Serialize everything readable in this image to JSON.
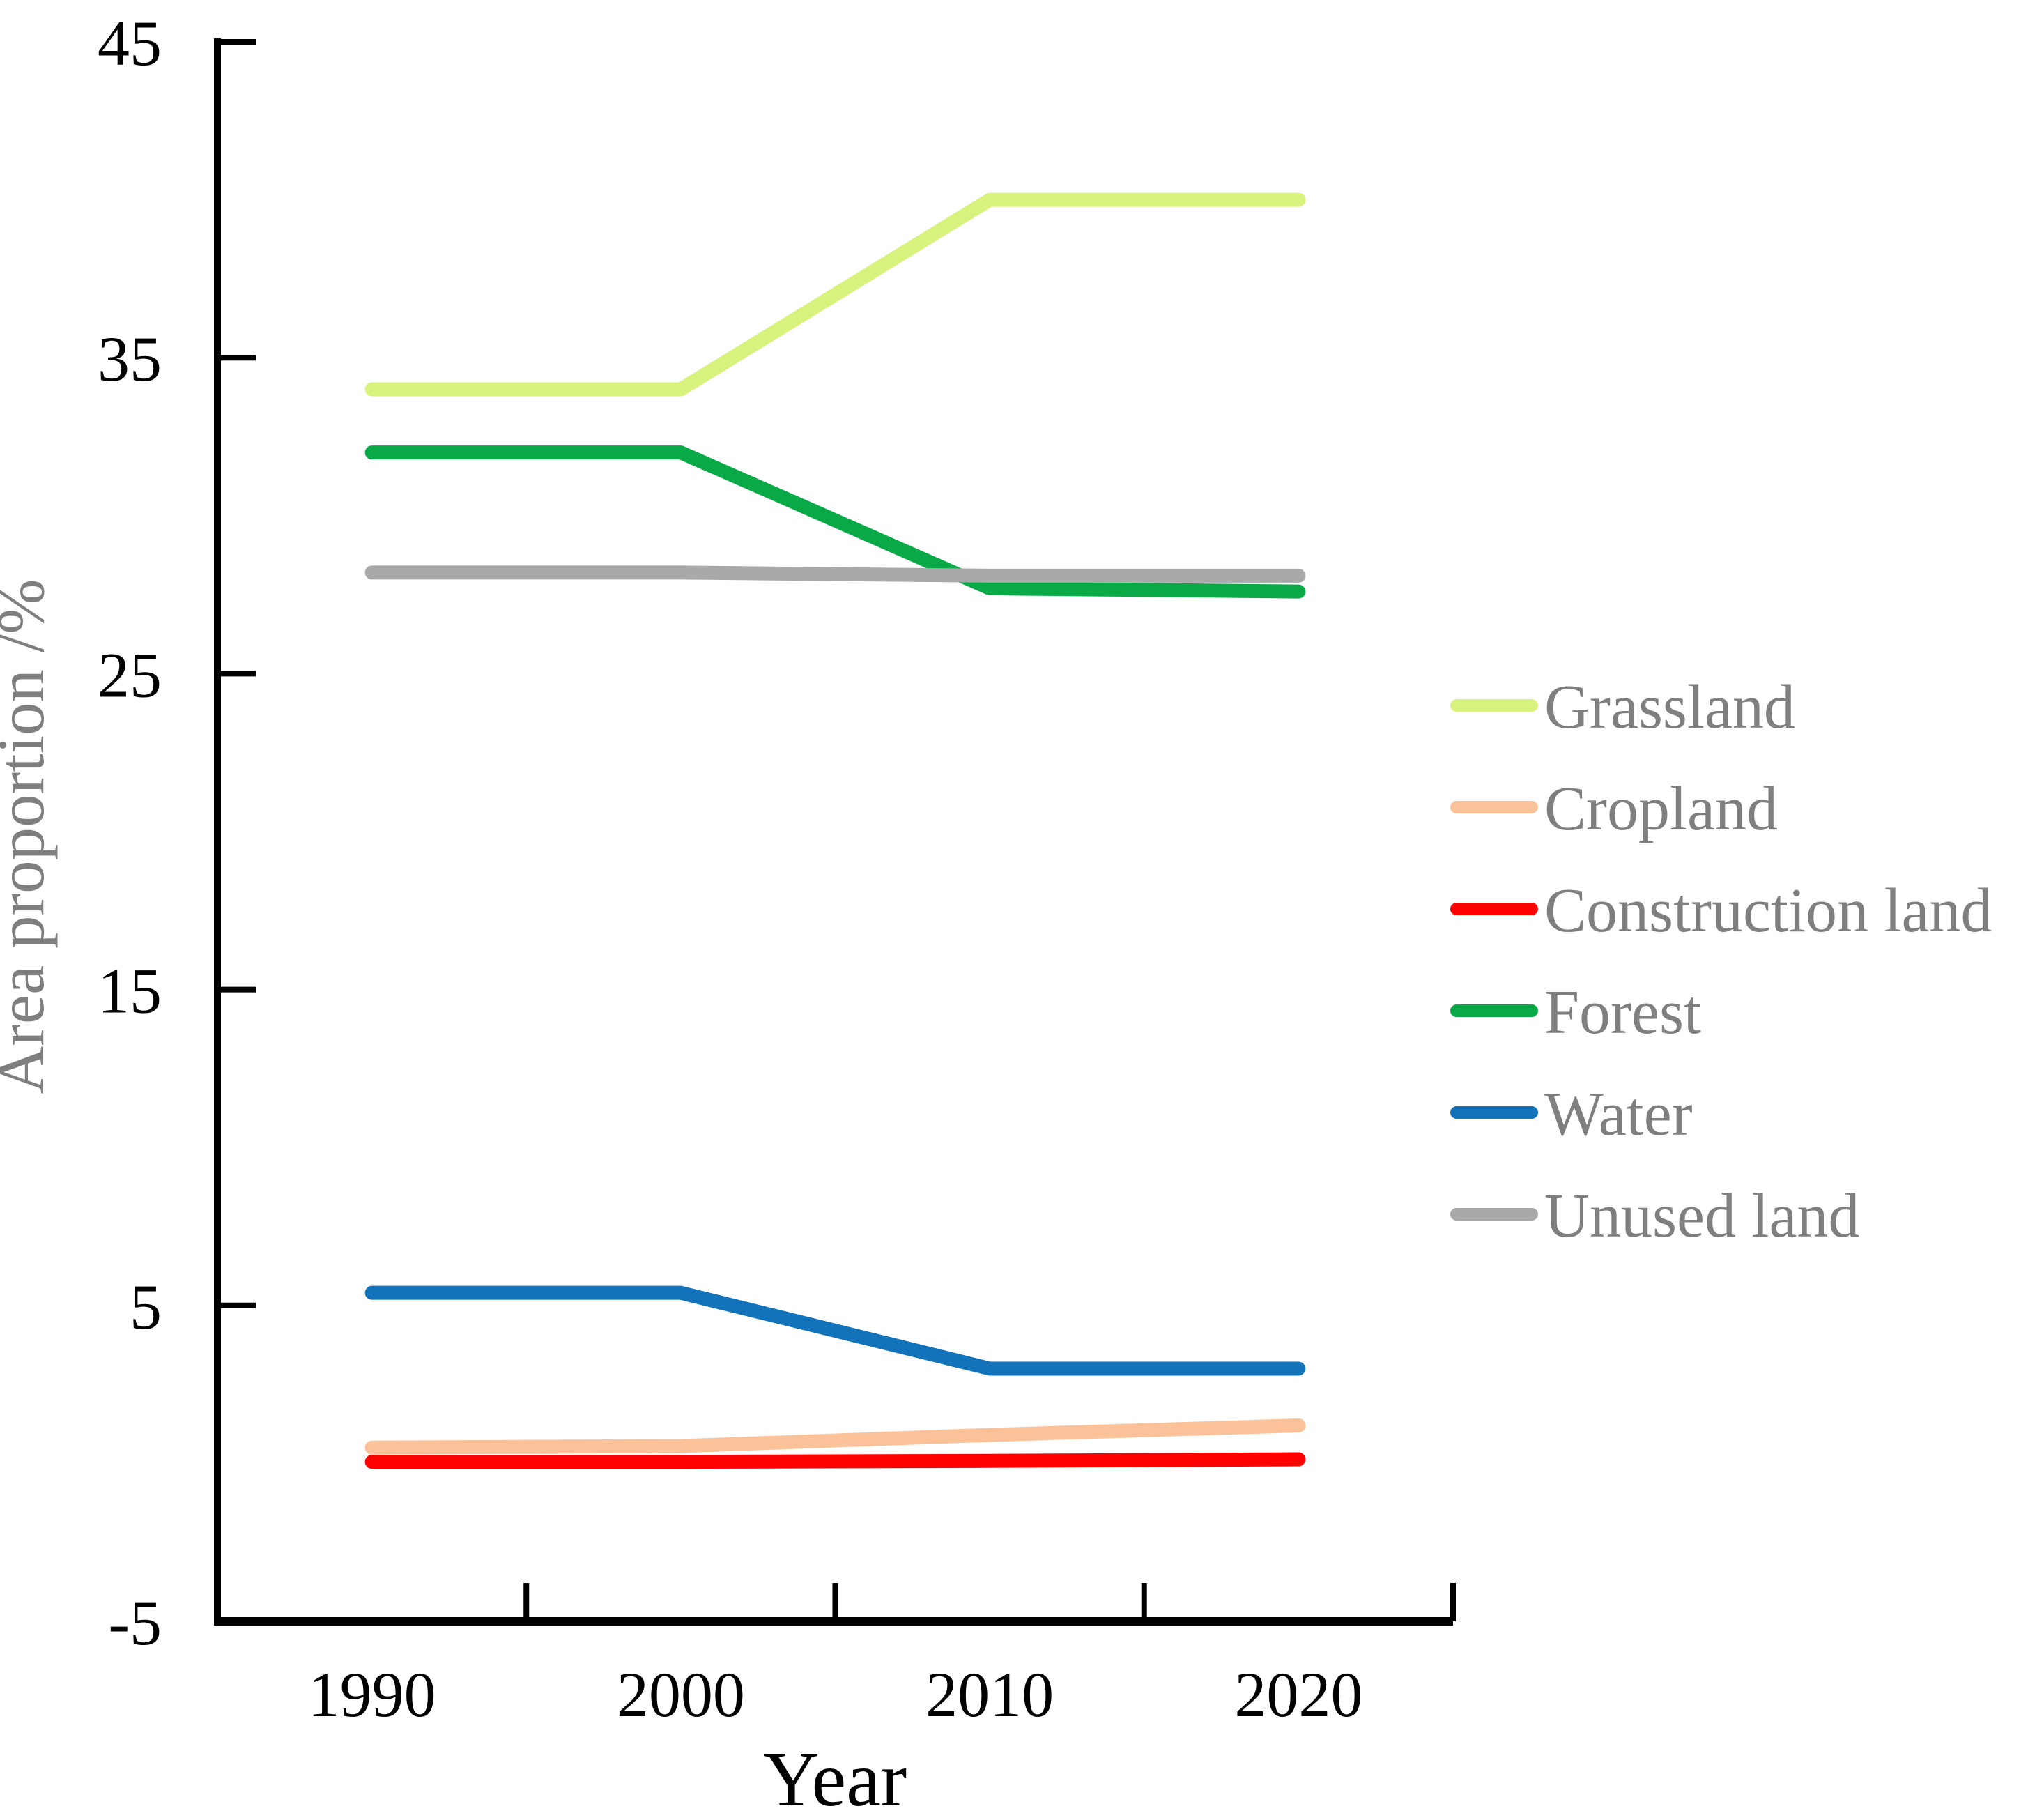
{
  "chart_data": {
    "type": "line",
    "title": "",
    "xlabel": "Year",
    "ylabel": "Area proportion /%",
    "categories": [
      "1990",
      "2000",
      "2010",
      "2020"
    ],
    "ylim": [
      -5,
      45
    ],
    "yticks": [
      {
        "label": "45",
        "value": 45
      },
      {
        "label": "35",
        "value": 35
      },
      {
        "label": "25",
        "value": 25
      },
      {
        "label": "15",
        "value": 15
      },
      {
        "label": "5",
        "value": 5
      },
      {
        "label": "-5",
        "value": -5
      }
    ],
    "grid": false,
    "legend_position": "right",
    "series": [
      {
        "name": "Grassland",
        "color": "#D7F27D",
        "values": [
          34.0,
          34.0,
          40.0,
          40.0
        ]
      },
      {
        "name": "Cropland",
        "color": "#FBC29A",
        "values": [
          0.5,
          0.55,
          0.9,
          1.2
        ]
      },
      {
        "name": "Construction land",
        "color": "#FF0000",
        "values": [
          0.05,
          0.05,
          0.08,
          0.13
        ]
      },
      {
        "name": "Forest",
        "color": "#0AA947",
        "values": [
          32.0,
          32.0,
          27.7,
          27.6
        ]
      },
      {
        "name": "Water",
        "color": "#1273BB",
        "values": [
          5.4,
          5.4,
          3.0,
          3.0
        ]
      },
      {
        "name": "Unused land",
        "color": "#A9A9A9",
        "values": [
          28.2,
          28.2,
          28.1,
          28.1
        ]
      }
    ],
    "axis_color": "#000000",
    "legend_text_color": "#7f7f7f"
  }
}
